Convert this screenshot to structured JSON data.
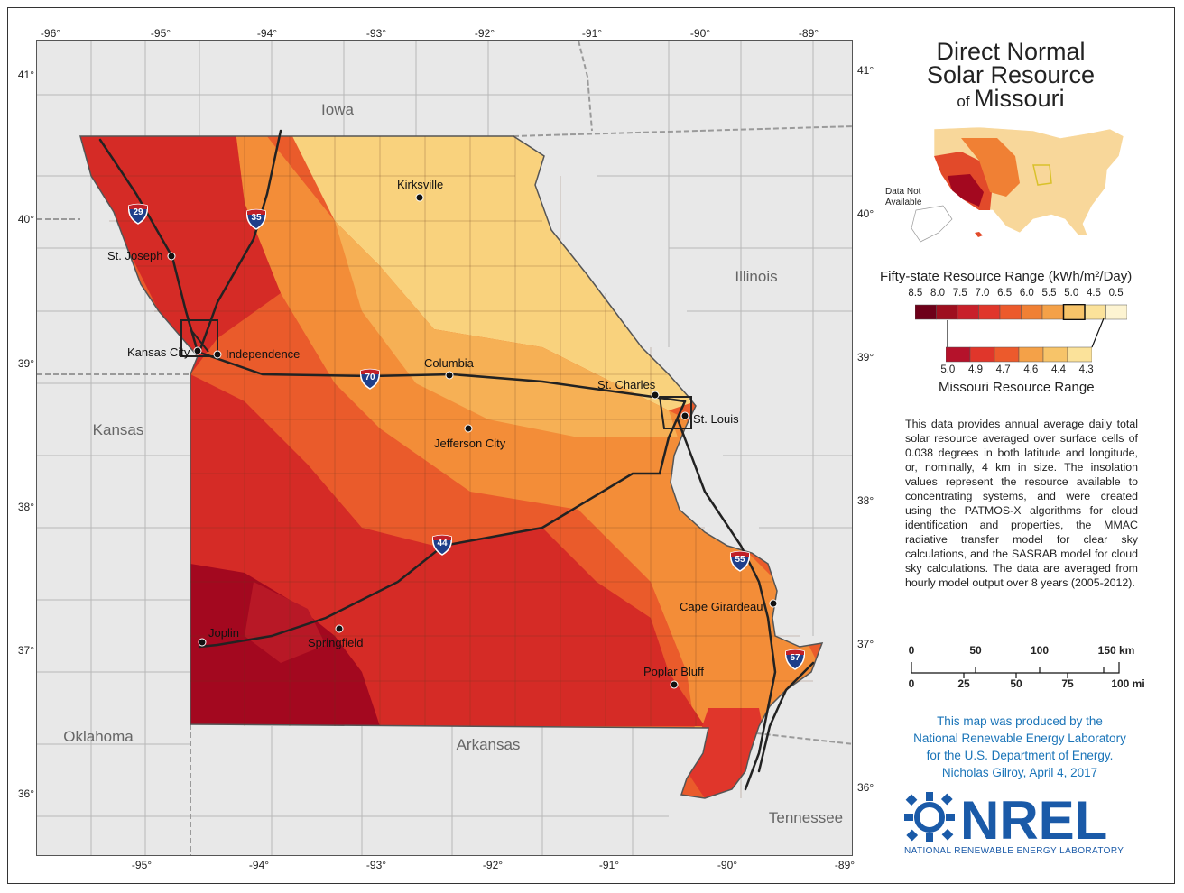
{
  "title": {
    "line1": "Direct Normal",
    "line2": "Solar Resource",
    "of": "of",
    "state": "Missouri"
  },
  "axes": {
    "lon_top": [
      "-96°",
      "-95°",
      "-94°",
      "-93°",
      "-92°",
      "-91°",
      "-90°",
      "-89°"
    ],
    "lon_bottom": [
      "-95°",
      "-94°",
      "-93°",
      "-92°",
      "-91°",
      "-90°",
      "-89°"
    ],
    "lat_left": [
      "41°",
      "40°",
      "39°",
      "38°",
      "37°",
      "36°"
    ],
    "lat_right": [
      "41°",
      "40°",
      "39°",
      "38°",
      "37°",
      "36°"
    ]
  },
  "states": {
    "iowa": "Iowa",
    "illinois": "Illinois",
    "kansas": "Kansas",
    "oklahoma": "Oklahoma",
    "arkansas": "Arkansas",
    "tennessee": "Tennessee"
  },
  "cities": {
    "kirksville": "Kirksville",
    "st_joseph": "St. Joseph",
    "kansas_city": "Kansas City",
    "independence": "Independence",
    "columbia": "Columbia",
    "st_charles": "St. Charles",
    "st_louis": "St. Louis",
    "jefferson_city": "Jefferson City",
    "joplin": "Joplin",
    "springfield": "Springfield",
    "cape_girardeau": "Cape Girardeau",
    "poplar_bluff": "Poplar Bluff"
  },
  "highways": {
    "i29": "29",
    "i35": "35",
    "i70": "70",
    "i44": "44",
    "i55": "55",
    "i57": "57"
  },
  "inset": {
    "no_data": "Data Not Available"
  },
  "legend": {
    "fifty_state_title": "Fifty-state Resource Range (kWh/m²/Day)",
    "fifty_state_values": [
      "8.5",
      "8.0",
      "7.5",
      "7.0",
      "6.5",
      "6.0",
      "5.5",
      "5.0",
      "4.5",
      "0.5"
    ],
    "fifty_state_colors": [
      "#6e0019",
      "#9e0f1f",
      "#c8202a",
      "#e0362b",
      "#ec5a2c",
      "#f08034",
      "#f4a148",
      "#f7c469",
      "#fbe29a",
      "#fdf4d2"
    ],
    "missouri_title": "Missouri Resource Range",
    "missouri_values": [
      "5.0",
      "4.9",
      "4.7",
      "4.6",
      "4.4",
      "4.3"
    ],
    "missouri_colors": [
      "#b5122b",
      "#e0362b",
      "#ec5a2c",
      "#f4a148",
      "#f7c469",
      "#fbe29a"
    ]
  },
  "description": "This data provides annual average daily total solar resource averaged over surface cells of 0.038 degrees in both latitude and longitude, or, nominally, 4 km in size. The insolation values represent the resource available to concentrating systems, and were created using the PATMOS-X algorithms for cloud identification and properties, the MMAC radiative transfer model for clear sky calculations, and the SASRAB model for cloud sky calculations. The data are averaged from hourly model output over 8 years (2005-2012).",
  "scale": {
    "km": [
      "0",
      "50",
      "100",
      "150 km"
    ],
    "mi": [
      "0",
      "25",
      "50",
      "75",
      "100 mi"
    ]
  },
  "credit": {
    "line1": "This map was produced by the",
    "line2": "National Renewable Energy Laboratory",
    "line3": "for the U.S. Department of Energy.",
    "line4": "Nicholas Gilroy,  April 4, 2017"
  },
  "logo": {
    "text": "NREL",
    "subtitle": "NATIONAL RENEWABLE ENERGY LABORATORY"
  },
  "colors": {
    "dni_highest": "#a3081f",
    "dni_high": "#d52b26",
    "dni_mid": "#ea5b2b",
    "dni_low": "#f38d38",
    "dni_lower": "#f6b055",
    "dni_lowest": "#f9d27d",
    "nrel_blue": "#1a5aa8"
  }
}
